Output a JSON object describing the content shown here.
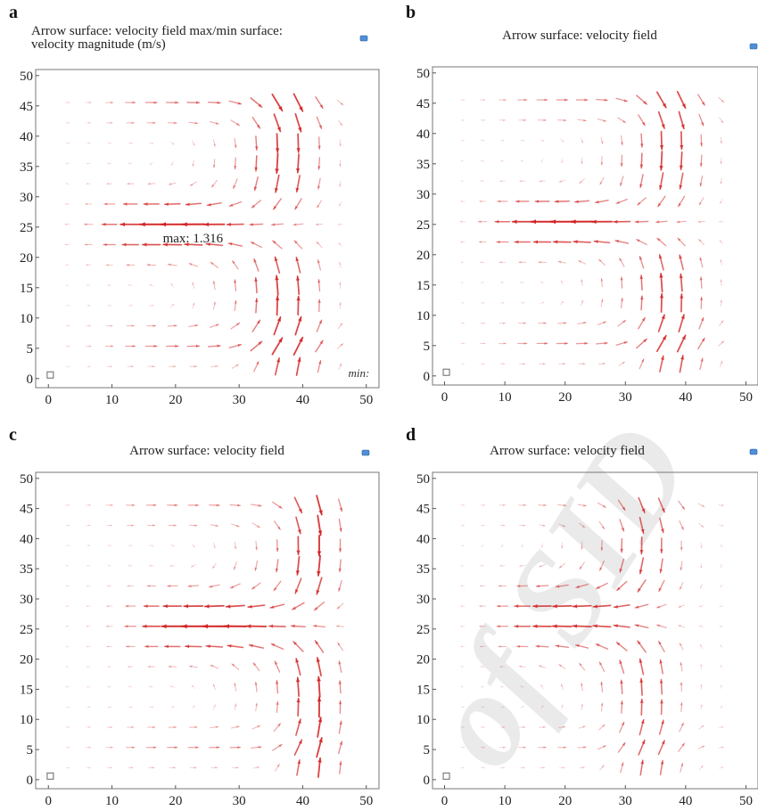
{
  "chart_data": [
    {
      "panel": "a",
      "type": "quiver",
      "title": "Arrow surface: velocity field max/min surface: velocity magnitude (m/s)",
      "title_lines": [
        "Arrow surface: velocity field max/min surface:",
        "velocity magnitude (m/s)"
      ],
      "xticks": [
        0,
        10,
        20,
        30,
        40,
        50
      ],
      "yticks": [
        0,
        5,
        10,
        15,
        20,
        25,
        30,
        35,
        40,
        45,
        50
      ],
      "xlim": [
        -2,
        52
      ],
      "ylim": [
        -1.5,
        51
      ],
      "arrow_color": "#d21e1e",
      "flow": "counter-rotating vortex pair; strong leftward jet near y=25 in x 10-30, returning flow along right side x≈35-45",
      "annotations": [
        {
          "text": "max: 1.316",
          "x": 18,
          "y": 22.5
        },
        {
          "text": "min:",
          "x": 50.5,
          "y": 0.3
        }
      ]
    },
    {
      "panel": "b",
      "type": "quiver",
      "title": "Arrow surface: velocity field",
      "xticks": [
        0,
        10,
        20,
        30,
        40,
        50
      ],
      "yticks": [
        0,
        5,
        10,
        15,
        20,
        25,
        30,
        35,
        40,
        45,
        50
      ],
      "xlim": [
        -2,
        52
      ],
      "ylim": [
        -1.5,
        51
      ],
      "arrow_color": "#d21e1e",
      "flow": "counter-rotating vortex pair; strongest leftward flow at y 20-30, x 10-30"
    },
    {
      "panel": "c",
      "type": "quiver",
      "title": "Arrow surface: velocity field",
      "xticks": [
        0,
        10,
        20,
        30,
        40,
        50
      ],
      "yticks": [
        0,
        5,
        10,
        15,
        20,
        25,
        30,
        35,
        40,
        45,
        50
      ],
      "xlim": [
        -2,
        52
      ],
      "ylim": [
        -1.5,
        51
      ],
      "arrow_color": "#d21e1e",
      "flow": "counter-rotating vortex pair; leftward jet at y 20-32, x 15-35, return flow near x≈40-45"
    },
    {
      "panel": "d",
      "type": "quiver",
      "title": "Arrow surface: velocity field",
      "xticks": [
        0,
        10,
        20,
        30,
        40,
        50
      ],
      "yticks": [
        0,
        5,
        10,
        15,
        20,
        25,
        30,
        35,
        40,
        45,
        50
      ],
      "xlim": [
        -2,
        52
      ],
      "ylim": [
        -1.5,
        51
      ],
      "arrow_color": "#d21e1e",
      "flow": "weaker counter-rotating vortex pair; leftward jet at y 20-35, x 10-30, return flow near x≈30-40"
    }
  ],
  "watermark": "of SID"
}
